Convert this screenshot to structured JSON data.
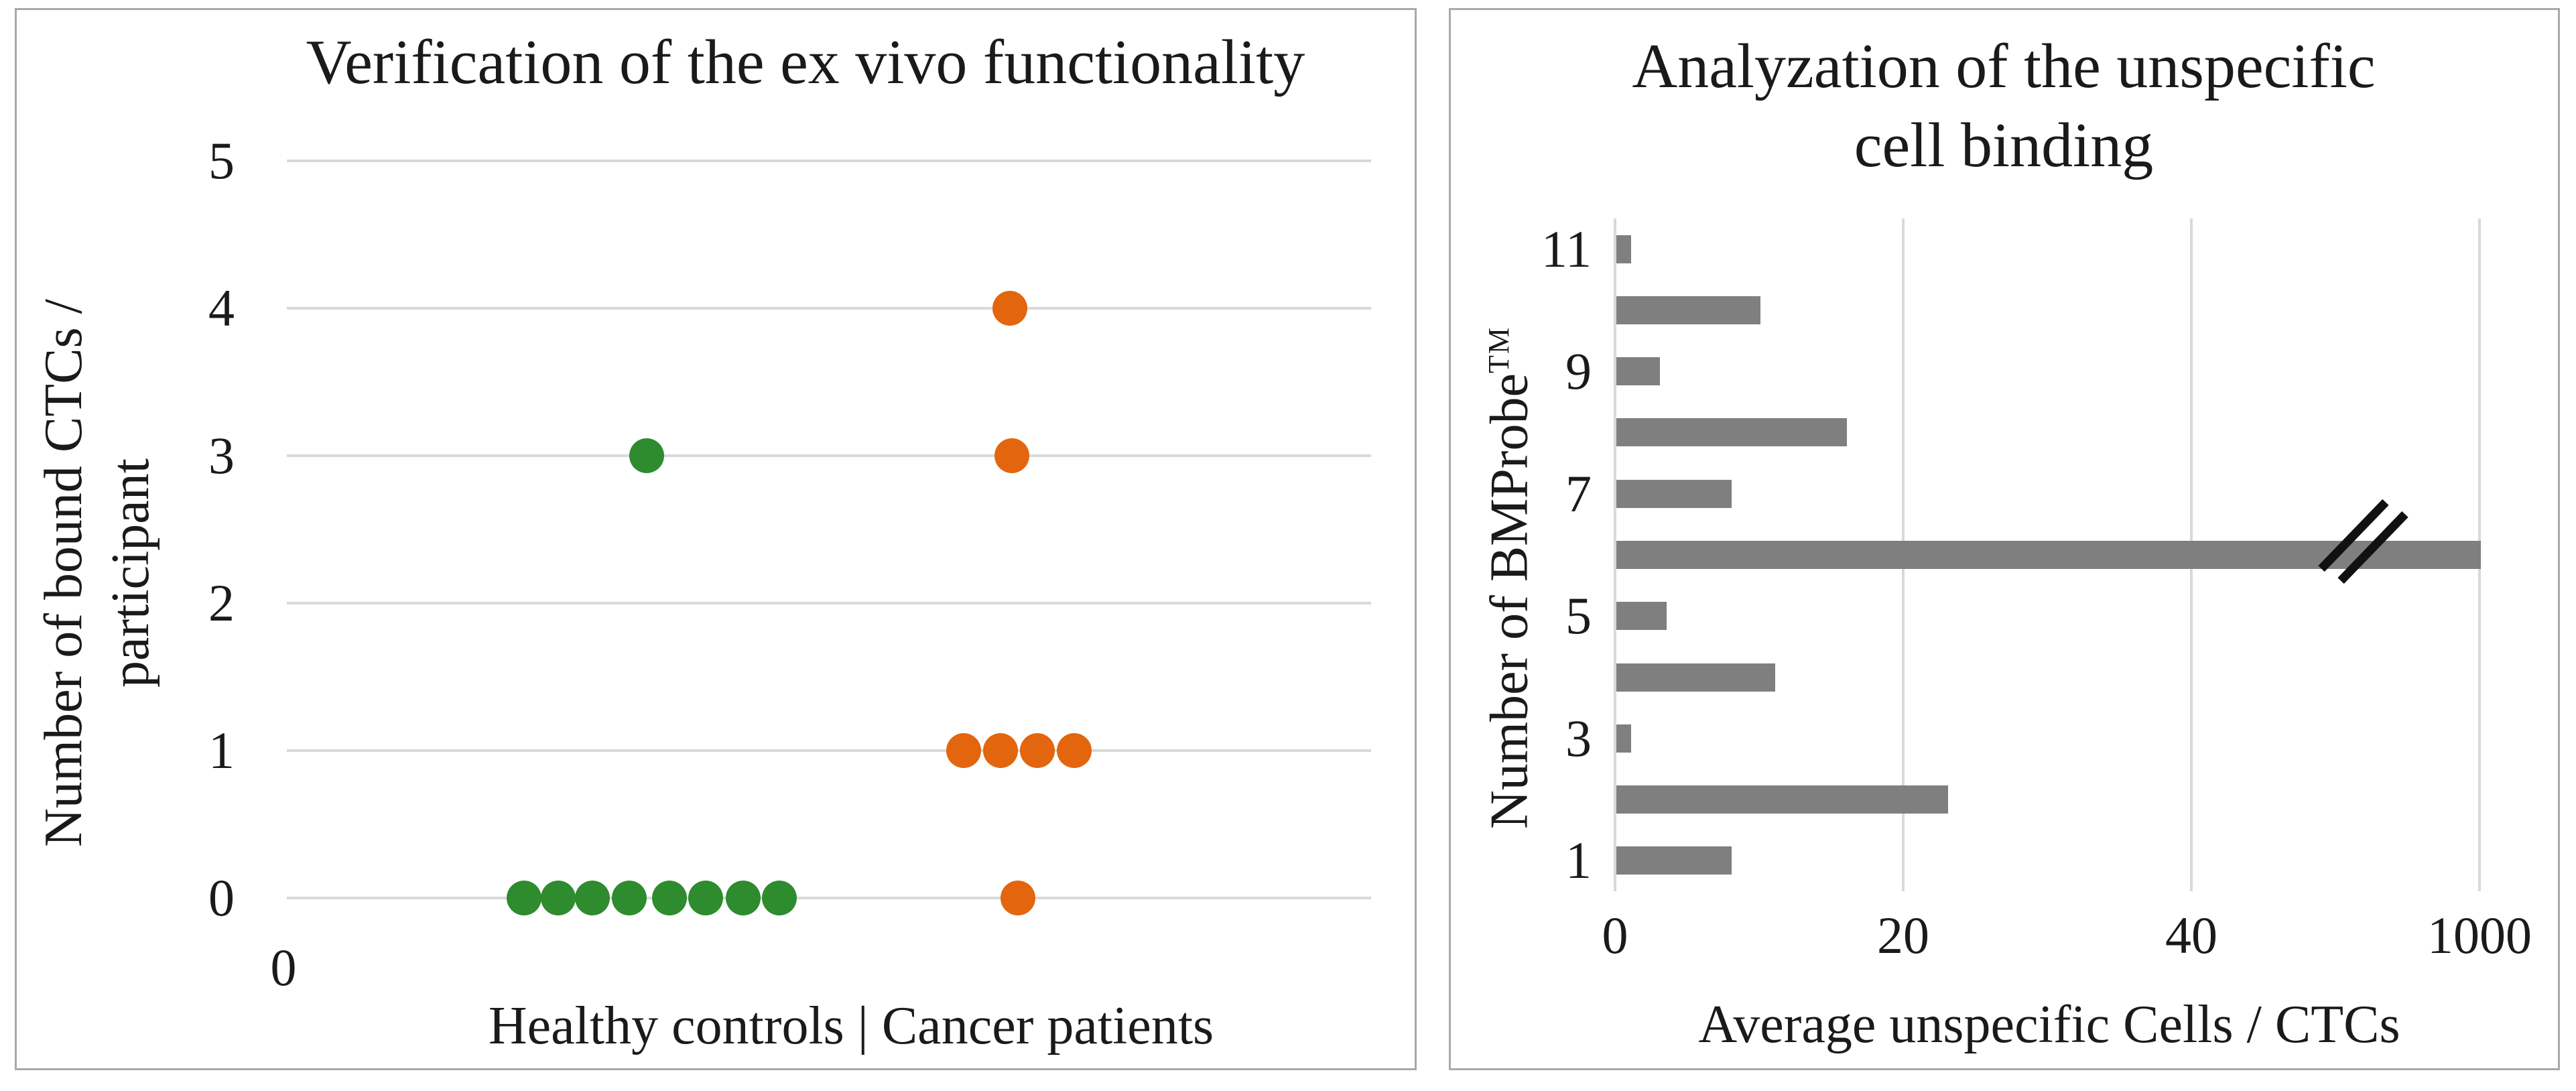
{
  "figure": {
    "background": "#ffffff",
    "panel_border_color": "#a9a9a9",
    "text_color": "#1a1a1a",
    "gridline_color": "#d9d9d9"
  },
  "chart_data": [
    {
      "type": "scatter",
      "panel": "left",
      "title": "Verification of the ex vivo functionality",
      "ylabel_lines": [
        "Number of bound CTCs /",
        "participant"
      ],
      "xlabel": "Healthy controls | Cancer patients",
      "x_origin_label": "0",
      "ylim": [
        0,
        5
      ],
      "y_ticks": [
        5,
        4,
        3,
        2,
        1,
        0
      ],
      "grid": "horizontal",
      "legend": "none",
      "series": [
        {
          "name": "Healthy controls",
          "color": "#2e8b2e",
          "y_values": [
            0,
            0,
            0,
            0,
            0,
            0,
            0,
            0,
            3
          ],
          "points": [
            {
              "x": 0.219,
              "y": 0
            },
            {
              "x": 0.25,
              "y": 0
            },
            {
              "x": 0.282,
              "y": 0
            },
            {
              "x": 0.316,
              "y": 0
            },
            {
              "x": 0.353,
              "y": 0
            },
            {
              "x": 0.386,
              "y": 0
            },
            {
              "x": 0.421,
              "y": 0
            },
            {
              "x": 0.454,
              "y": 0
            },
            {
              "x": 0.332,
              "y": 3
            }
          ]
        },
        {
          "name": "Cancer patients",
          "color": "#e3650d",
          "y_values": [
            4,
            3,
            1,
            1,
            1,
            1,
            0
          ],
          "points": [
            {
              "x": 0.667,
              "y": 4
            },
            {
              "x": 0.669,
              "y": 3
            },
            {
              "x": 0.624,
              "y": 1
            },
            {
              "x": 0.658,
              "y": 1
            },
            {
              "x": 0.692,
              "y": 1
            },
            {
              "x": 0.726,
              "y": 1
            },
            {
              "x": 0.674,
              "y": 0
            }
          ]
        }
      ]
    },
    {
      "type": "bar",
      "panel": "right",
      "orientation": "horizontal",
      "title_lines": [
        "Analyzation of the unspecific",
        "cell binding"
      ],
      "ylabel": "Number of BMProbe",
      "ylabel_superscript": "TM",
      "xlabel": "Average unspecific Cells / CTCs",
      "categories": [
        1,
        2,
        3,
        4,
        5,
        6,
        7,
        8,
        9,
        10,
        11
      ],
      "values": [
        8,
        23,
        1,
        11,
        3.5,
        1000,
        8,
        16,
        3,
        10,
        1
      ],
      "y_tick_labels": [
        "11",
        "9",
        "7",
        "5",
        "3",
        "1"
      ],
      "x_ticks": [
        "0",
        "20",
        "40",
        "1000"
      ],
      "bar_color": "#7f7f7f",
      "axis_break": {
        "between_ticks": [
          "40",
          "1000"
        ],
        "on_category": 6
      }
    }
  ]
}
